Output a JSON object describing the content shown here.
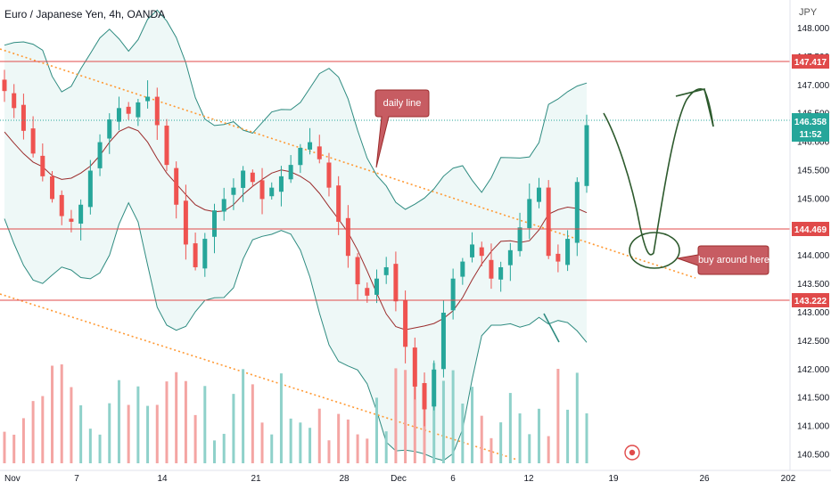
{
  "header": {
    "title": "Euro / Japanese Yen, 4h, OANDA",
    "unit": "JPY"
  },
  "chart_data": {
    "type": "candlestick",
    "title": "Euro / Japanese Yen, 4h, OANDA",
    "ylabel": "JPY",
    "ylim": [
      140.4,
      148.2
    ],
    "y_ticks": [
      "148.000",
      "147.500",
      "147.000",
      "146.500",
      "146.000",
      "145.500",
      "145.000",
      "144.500",
      "144.000",
      "143.500",
      "143.000",
      "142.500",
      "142.000",
      "141.500",
      "141.000",
      "140.500"
    ],
    "x_ticks": [
      "Nov",
      "7",
      "14",
      "21",
      "28",
      "Dec",
      "6",
      "12",
      "19",
      "26",
      "202"
    ],
    "grid": false,
    "horizontal_levels": [
      {
        "label": "147.417",
        "value": 147.417,
        "color": "#e04a4a"
      },
      {
        "label": "144.469",
        "value": 144.469,
        "color": "#e04a4a"
      },
      {
        "label": "143.222",
        "value": 143.222,
        "color": "#e04a4a"
      }
    ],
    "current_price": {
      "label": "146.358",
      "countdown": "11:52",
      "color": "#26a69a"
    },
    "annotations": [
      {
        "text": "daily line"
      },
      {
        "text": "buy around here"
      }
    ],
    "series_close_approx": [
      146.9,
      146.6,
      146.2,
      145.8,
      145.4,
      145.0,
      144.7,
      144.6,
      144.9,
      145.5,
      146.0,
      146.4,
      146.6,
      146.5,
      146.7,
      146.8,
      146.3,
      145.6,
      144.9,
      144.2,
      143.8,
      144.3,
      144.8,
      145.0,
      145.2,
      145.5,
      145.3,
      145.0,
      145.2,
      145.4,
      145.6,
      145.9,
      146.0,
      145.7,
      145.2,
      144.6,
      144.0,
      143.5,
      143.3,
      143.6,
      143.8,
      143.2,
      142.4,
      141.7,
      141.3,
      142.0,
      143.0,
      143.6,
      143.9,
      144.2,
      144.0,
      143.6,
      143.8,
      144.1,
      144.5,
      145.0,
      145.2,
      144.0,
      143.9,
      144.3,
      145.3,
      146.3
    ]
  }
}
